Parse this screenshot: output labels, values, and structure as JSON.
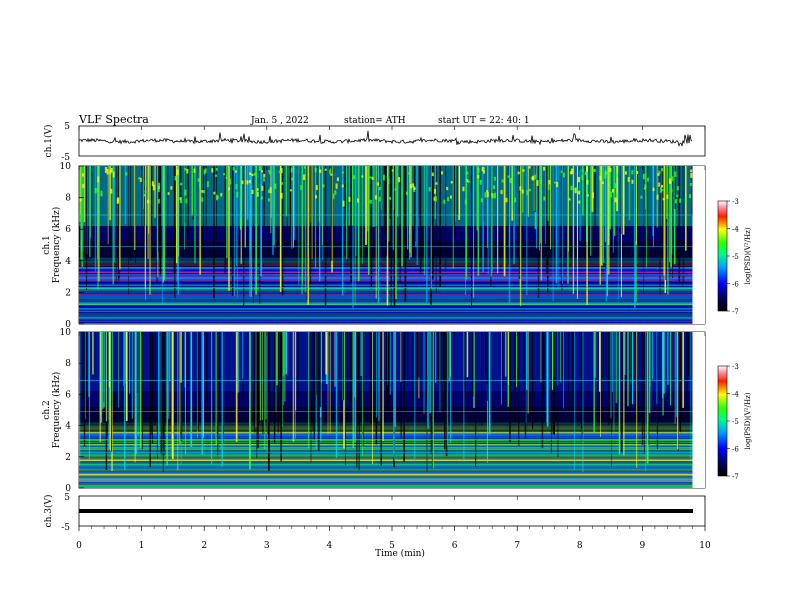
{
  "header": {
    "title": "VLF  Spectra",
    "date": "Jan.  5  , 2022",
    "station": "station= ATH",
    "start": "start  UT  =   22: 40: 1"
  },
  "chart_data": [
    {
      "type": "line",
      "name": "ch1-waveform",
      "ylabel": "ch.1(V)",
      "ylim": [
        -5,
        5
      ],
      "yticks": [
        "5",
        "-5"
      ],
      "xlim": [
        0,
        10
      ],
      "x_end_min": 9.8,
      "approx_level": 0,
      "approx_amplitude": 1.0
    },
    {
      "type": "heatmap",
      "name": "ch1-spectrogram",
      "ylabel": "ch.1\nFrequency (kHz)",
      "ylabel_line1": "ch.1",
      "ylabel_line2": "Frequency  (kHz)",
      "ylim": [
        0,
        10
      ],
      "yticks": [
        "0",
        "2",
        "4",
        "6",
        "8",
        "10"
      ],
      "xlim": [
        0,
        10
      ],
      "x_end_min": 9.8,
      "colorbar": {
        "label": "log(PSD)(V²/Hz)",
        "range": [
          -7,
          -3
        ],
        "ticks": [
          "-3",
          "-4",
          "-5",
          "-6",
          "-7"
        ]
      }
    },
    {
      "type": "heatmap",
      "name": "ch2-spectrogram",
      "ylabel_line1": "ch.2",
      "ylabel_line2": "Frequency  (kHz)",
      "ylim": [
        0,
        10
      ],
      "yticks": [
        "0",
        "2",
        "4",
        "6",
        "8",
        "10"
      ],
      "xlim": [
        0,
        10
      ],
      "x_end_min": 9.8,
      "colorbar": {
        "label": "log(PSD)(V²/Hz)",
        "range": [
          -7,
          -3
        ],
        "ticks": [
          "-3",
          "-4",
          "-5",
          "-6",
          "-7"
        ]
      }
    },
    {
      "type": "line",
      "name": "ch3-waveform",
      "ylabel": "ch.3(V)",
      "ylim": [
        -5,
        5
      ],
      "yticks": [
        "5",
        "-5"
      ],
      "xlim": [
        0,
        10
      ],
      "x_end_min": 9.8,
      "approx_level": 0.2
    }
  ],
  "xaxis": {
    "label": "Time  (min)",
    "ticks": [
      "0",
      "1",
      "2",
      "3",
      "4",
      "5",
      "6",
      "7",
      "8",
      "9",
      "10"
    ]
  },
  "colors": {
    "axis": "#000000",
    "trace": "#000000",
    "background": "#ffffff"
  }
}
